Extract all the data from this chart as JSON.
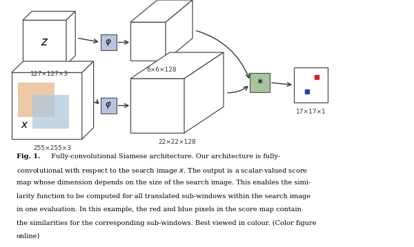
{
  "fig_width": 6.0,
  "fig_height": 3.59,
  "dpi": 100,
  "bg_color": "#ffffff",
  "colors": {
    "box_face": "#ffffff",
    "box_edge": "#4a4a4a",
    "phi_face": "#b8c4e0",
    "phi_edge": "#4a4a4a",
    "star_face": "#a8c4a0",
    "star_edge": "#4a4a4a",
    "arrow": "#333333",
    "orange_patch": "#e8b888",
    "blue_patch": "#b0c8dc",
    "score_face": "#ffffff",
    "red_dot": "#cc2222",
    "blue_dot": "#2244aa"
  },
  "z_label": "z",
  "x_label": "x",
  "phi_symbol": "$\\varphi$",
  "star_symbol": "*",
  "label_z_dim": "127×127×3",
  "label_x_dim": "255×255×3",
  "label_fm_top": "6×6×128",
  "label_fm_bot": "22×22×128",
  "label_score": "17×17×1",
  "caption_bold": "Fig. 1.",
  "caption_rest": "  Fully-convolutional Siamese architecture. Our architecture is fully-\nconvolutional with respect to the search image $x$. The output is a scalar-valued score\nmap whose dimension depends on the size of the search image. This enables the simi-\nlarity function to be computed for all translated sub-windows within the search image\nin one evaluation. In this example, the red and blue pixels in the score map contain\nthe similarities for the corresponding sub-windows. Best viewed in colour. (Color figure\nonline)"
}
